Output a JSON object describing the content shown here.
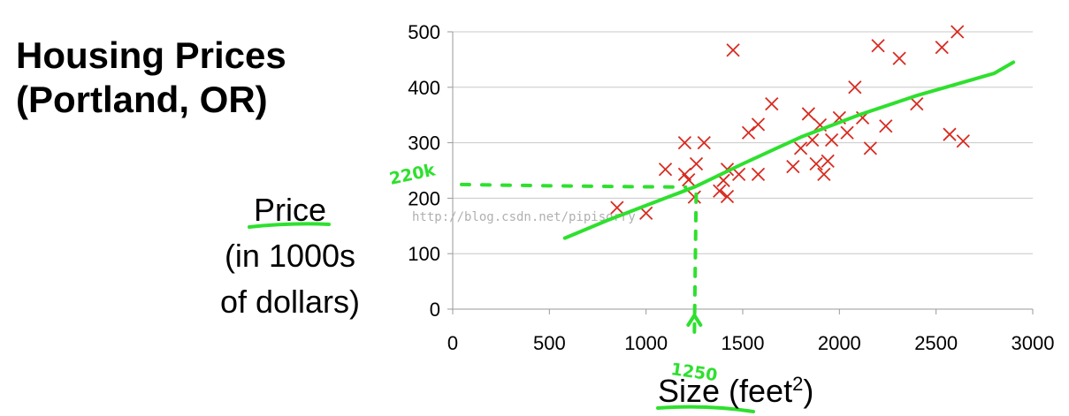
{
  "title_line1": "Housing Prices",
  "title_line2": "(Portland, OR)",
  "ylabel_line1": "Price",
  "ylabel_line2": "(in 1000s",
  "ylabel_line3": "of dollars)",
  "xlabel_text": "Size (feet",
  "xlabel_sup": "2",
  "xlabel_close": ")",
  "watermark": "http://blog.csdn.net/pipisorry",
  "annotation_y": "220k",
  "annotation_x": "1250",
  "colors": {
    "points": "#d82b20",
    "fit": "#2ee02e",
    "grid": "#c8c8c8"
  },
  "chart_data": {
    "type": "scatter",
    "xlim": [
      0,
      3000
    ],
    "ylim": [
      0,
      500
    ],
    "x_ticks": [
      0,
      500,
      1000,
      1500,
      2000,
      2500,
      3000
    ],
    "y_ticks": [
      0,
      100,
      200,
      300,
      400,
      500
    ],
    "grid": "horizontal",
    "marker": "x",
    "points": [
      [
        850,
        183
      ],
      [
        1000,
        173
      ],
      [
        1100,
        252
      ],
      [
        1200,
        300
      ],
      [
        1200,
        243
      ],
      [
        1220,
        233
      ],
      [
        1250,
        202
      ],
      [
        1260,
        262
      ],
      [
        1300,
        300
      ],
      [
        1380,
        213
      ],
      [
        1400,
        232
      ],
      [
        1420,
        203
      ],
      [
        1420,
        252
      ],
      [
        1450,
        467
      ],
      [
        1480,
        243
      ],
      [
        1530,
        318
      ],
      [
        1580,
        333
      ],
      [
        1580,
        243
      ],
      [
        1650,
        370
      ],
      [
        1760,
        257
      ],
      [
        1800,
        290
      ],
      [
        1840,
        352
      ],
      [
        1860,
        305
      ],
      [
        1880,
        262
      ],
      [
        1900,
        332
      ],
      [
        1920,
        243
      ],
      [
        1940,
        267
      ],
      [
        1960,
        305
      ],
      [
        2000,
        345
      ],
      [
        2040,
        318
      ],
      [
        2080,
        400
      ],
      [
        2120,
        345
      ],
      [
        2160,
        290
      ],
      [
        2200,
        475
      ],
      [
        2240,
        330
      ],
      [
        2310,
        452
      ],
      [
        2400,
        370
      ],
      [
        2530,
        472
      ],
      [
        2570,
        315
      ],
      [
        2610,
        500
      ],
      [
        2640,
        303
      ]
    ],
    "fit_line": [
      [
        580,
        128
      ],
      [
        800,
        160
      ],
      [
        1000,
        187
      ],
      [
        1250,
        220
      ],
      [
        1500,
        262
      ],
      [
        1800,
        310
      ],
      [
        2100,
        350
      ],
      [
        2400,
        385
      ],
      [
        2600,
        405
      ],
      [
        2800,
        425
      ],
      [
        2900,
        445
      ]
    ],
    "guide_point": [
      1250,
      220
    ]
  }
}
